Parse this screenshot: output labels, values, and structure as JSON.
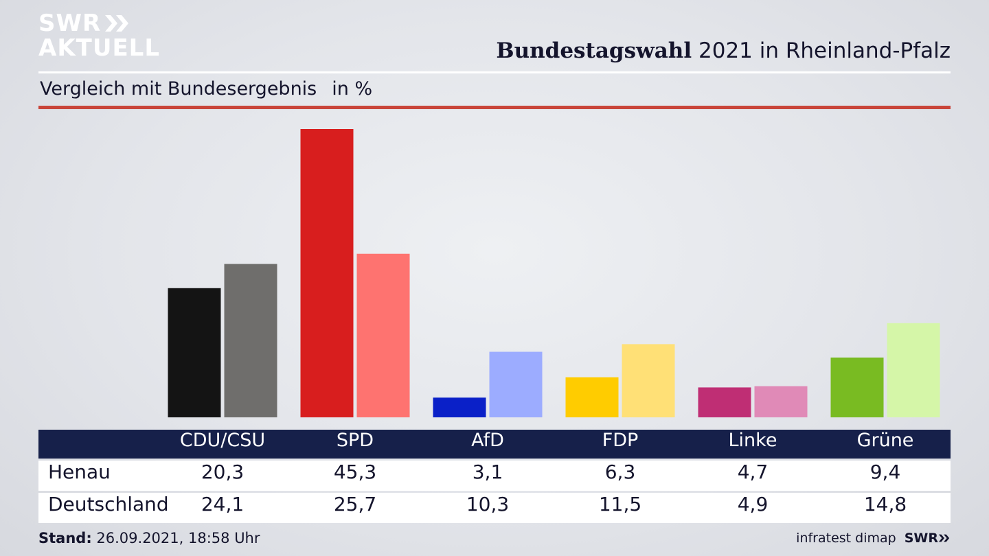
{
  "brand": {
    "line1": "SWR",
    "line2": "AKTUELL"
  },
  "header": {
    "title_bold": "Bundestagswahl",
    "title_rest": "2021 in Rheinland-Pfalz"
  },
  "subheader": {
    "text": "Vergleich mit Bundesergebnis",
    "unit": "in %"
  },
  "table": {
    "columns": [
      "CDU/CSU",
      "SPD",
      "AfD",
      "FDP",
      "Linke",
      "Grüne"
    ],
    "rows": [
      {
        "label": "Henau",
        "values": [
          "20,3",
          "45,3",
          "3,1",
          "6,3",
          "4,7",
          "9,4"
        ]
      },
      {
        "label": "Deutschland",
        "values": [
          "24,1",
          "25,7",
          "10,3",
          "11,5",
          "4,9",
          "14,8"
        ]
      }
    ]
  },
  "footer": {
    "stand_label": "Stand:",
    "stand_value": "26.09.2021, 18:58 Uhr",
    "source": "infratest dimap",
    "brand": "SWR"
  },
  "chart_data": {
    "type": "bar",
    "categories": [
      "CDU/CSU",
      "SPD",
      "AfD",
      "FDP",
      "Linke",
      "Grüne"
    ],
    "series": [
      {
        "name": "Henau",
        "values": [
          20.3,
          45.3,
          3.1,
          6.3,
          4.7,
          9.4
        ],
        "colors": [
          "#141414",
          "#d81e1e",
          "#0a20c8",
          "#ffcc00",
          "#bf2e74",
          "#79bb22"
        ]
      },
      {
        "name": "Deutschland",
        "values": [
          24.1,
          25.7,
          10.3,
          11.5,
          4.9,
          14.8
        ],
        "colors": [
          "#6f6e6c",
          "#fe7370",
          "#9cacff",
          "#ffe076",
          "#e08ab7",
          "#d5f6a8"
        ]
      }
    ],
    "ylim": [
      0,
      45.3
    ],
    "grid": false,
    "legend": "table-below"
  }
}
